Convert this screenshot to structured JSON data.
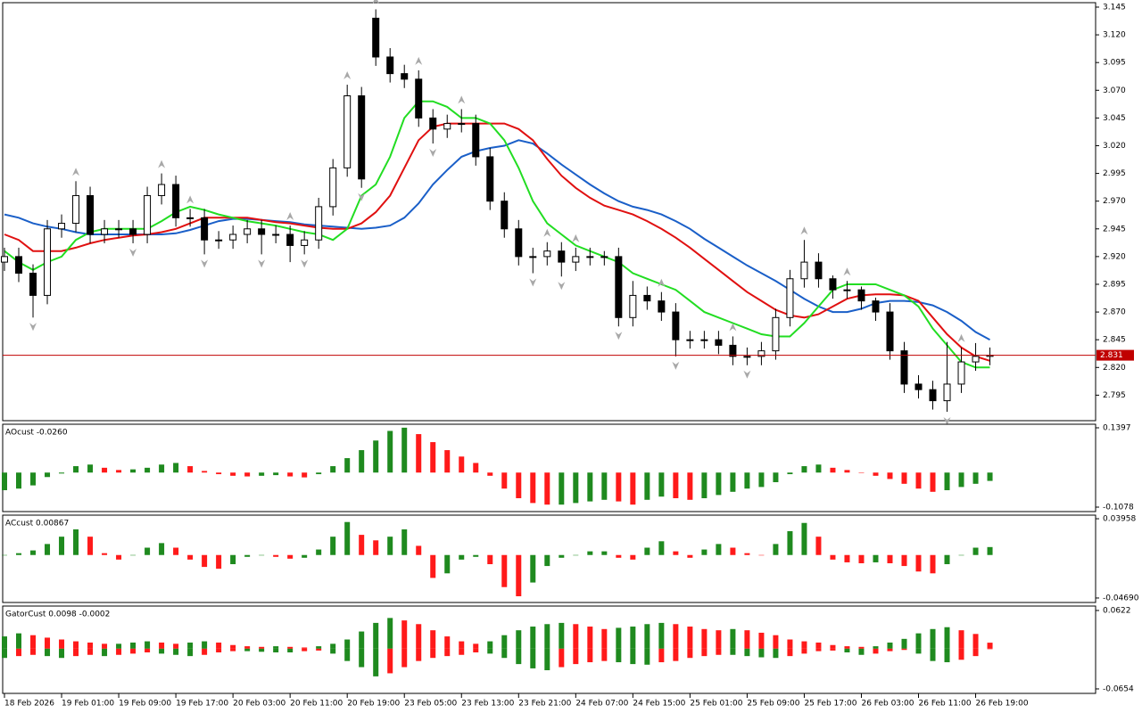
{
  "chart_data": [
    {
      "type": "candlestick",
      "xlim": [
        -0.125,
        76.4
      ],
      "xticks": [
        {
          "value": 0,
          "label": "18 Feb 2026"
        },
        {
          "value": 4,
          "label": "19 Feb 01:00"
        },
        {
          "value": 8,
          "label": "19 Feb 09:00"
        },
        {
          "value": 12,
          "label": "19 Feb 17:00"
        },
        {
          "value": 16,
          "label": "20 Feb 03:00"
        },
        {
          "value": 20,
          "label": "20 Feb 11:00"
        },
        {
          "value": 24,
          "label": "20 Feb 19:00"
        },
        {
          "value": 28,
          "label": "23 Feb 05:00"
        },
        {
          "value": 32,
          "label": "23 Feb 13:00"
        },
        {
          "value": 36,
          "label": "23 Feb 21:00"
        },
        {
          "value": 40,
          "label": "24 Feb 07:00"
        },
        {
          "value": 44,
          "label": "24 Feb 15:00"
        },
        {
          "value": 48,
          "label": "25 Feb 01:00"
        },
        {
          "value": 52,
          "label": "25 Feb 09:00"
        },
        {
          "value": 56,
          "label": "25 Feb 17:00"
        },
        {
          "value": 60,
          "label": "26 Feb 03:00"
        },
        {
          "value": 64,
          "label": "26 Feb 11:00"
        },
        {
          "value": 68,
          "label": "26 Feb 19:00"
        }
      ],
      "ylim": [
        2.772,
        3.149
      ],
      "yticks": [
        3.145,
        {
          "value": 3.12,
          "label": "3.120"
        },
        3.095,
        {
          "value": 3.07,
          "label": "3.070"
        },
        3.045,
        {
          "value": 3.02,
          "label": "3.020"
        },
        2.995,
        {
          "value": 2.97,
          "label": "2.970"
        },
        2.945,
        {
          "value": 2.92,
          "label": "2.920"
        },
        2.895,
        {
          "value": 2.87,
          "label": "2.870"
        },
        2.845,
        {
          "value": 2.82,
          "label": "2.820"
        },
        2.795
      ],
      "up_color": "#ffffff",
      "down_color": "#000000",
      "fractal_color": "#a8a8a8",
      "open": [
        2.915,
        2.92,
        2.905,
        2.885,
        2.945,
        2.95,
        2.975,
        2.94,
        2.945,
        2.945,
        2.94,
        2.975,
        2.985,
        2.955,
        2.955,
        2.935,
        2.935,
        2.94,
        2.945,
        2.94,
        2.94,
        2.93,
        2.935,
        2.965,
        3.0,
        3.065,
        3.135,
        3.1,
        3.085,
        3.08,
        3.045,
        3.035,
        3.04,
        3.04,
        3.01,
        2.97,
        2.945,
        2.92,
        2.92,
        2.925,
        2.915,
        2.92,
        2.92,
        2.92,
        2.865,
        2.885,
        2.88,
        2.87,
        2.845,
        2.845,
        2.845,
        2.84,
        2.83,
        2.83,
        2.835,
        2.865,
        2.9,
        2.915,
        2.9,
        2.89,
        2.89,
        2.88,
        2.87,
        2.835,
        2.805,
        2.8,
        2.79,
        2.805,
        2.825,
        2.83
      ],
      "high": [
        2.928,
        2.928,
        2.913,
        2.953,
        2.958,
        2.988,
        2.983,
        2.953,
        2.953,
        2.953,
        2.983,
        2.995,
        2.993,
        2.963,
        2.963,
        2.943,
        2.948,
        2.953,
        2.953,
        2.948,
        2.948,
        2.943,
        2.973,
        3.008,
        3.075,
        3.073,
        3.143,
        3.108,
        3.093,
        3.088,
        3.053,
        3.048,
        3.053,
        3.048,
        3.018,
        2.978,
        2.953,
        2.928,
        2.933,
        2.933,
        2.928,
        2.928,
        2.925,
        2.928,
        2.898,
        2.893,
        2.888,
        2.878,
        2.853,
        2.853,
        2.853,
        2.848,
        2.838,
        2.843,
        2.873,
        2.908,
        2.935,
        2.923,
        2.903,
        2.898,
        2.893,
        2.883,
        2.878,
        2.843,
        2.813,
        2.808,
        2.843,
        2.838,
        2.842,
        2.838
      ],
      "low": [
        2.907,
        2.897,
        2.865,
        2.877,
        2.937,
        2.942,
        2.932,
        2.932,
        2.937,
        2.932,
        2.932,
        2.967,
        2.947,
        2.947,
        2.922,
        2.927,
        2.927,
        2.932,
        2.922,
        2.932,
        2.915,
        2.922,
        2.927,
        2.957,
        2.992,
        2.982,
        3.092,
        3.077,
        3.072,
        3.037,
        3.022,
        3.027,
        3.032,
        3.002,
        2.962,
        2.937,
        2.912,
        2.905,
        2.912,
        2.902,
        2.907,
        2.912,
        2.912,
        2.857,
        2.857,
        2.872,
        2.862,
        2.83,
        2.837,
        2.837,
        2.832,
        2.822,
        2.822,
        2.822,
        2.827,
        2.857,
        2.892,
        2.892,
        2.882,
        2.882,
        2.872,
        2.862,
        2.827,
        2.797,
        2.792,
        2.782,
        2.78,
        2.797,
        2.817,
        2.822
      ],
      "close": [
        2.92,
        2.905,
        2.885,
        2.945,
        2.95,
        2.975,
        2.94,
        2.945,
        2.945,
        2.94,
        2.975,
        2.985,
        2.955,
        2.955,
        2.935,
        2.935,
        2.94,
        2.945,
        2.94,
        2.94,
        2.93,
        2.935,
        2.965,
        3.0,
        3.065,
        2.99,
        3.1,
        3.085,
        3.08,
        3.045,
        3.035,
        3.04,
        3.04,
        3.01,
        2.97,
        2.945,
        2.92,
        2.92,
        2.925,
        2.915,
        2.92,
        2.92,
        2.92,
        2.865,
        2.885,
        2.88,
        2.87,
        2.845,
        2.845,
        2.845,
        2.84,
        2.83,
        2.83,
        2.835,
        2.865,
        2.9,
        2.915,
        2.9,
        2.89,
        2.89,
        2.88,
        2.87,
        2.835,
        2.805,
        2.8,
        2.79,
        2.805,
        2.825,
        2.83,
        2.831
      ],
      "fractals_up": [
        {
          "x": 5,
          "value": 2.988
        },
        {
          "x": 11,
          "value": 2.995
        },
        {
          "x": 13,
          "value": 2.963
        },
        {
          "x": 20,
          "value": 2.948
        },
        {
          "x": 24,
          "value": 3.075
        },
        {
          "x": 26,
          "value": 3.143
        },
        {
          "x": 29,
          "value": 3.088
        },
        {
          "x": 32,
          "value": 3.053
        },
        {
          "x": 38,
          "value": 2.933
        },
        {
          "x": 40,
          "value": 2.928
        },
        {
          "x": 46,
          "value": 2.888
        },
        {
          "x": 51,
          "value": 2.848
        },
        {
          "x": 56,
          "value": 2.935
        },
        {
          "x": 59,
          "value": 2.898
        },
        {
          "x": 67,
          "value": 2.838
        }
      ],
      "fractals_down": [
        {
          "x": 2,
          "value": 2.865
        },
        {
          "x": 9,
          "value": 2.932
        },
        {
          "x": 14,
          "value": 2.922
        },
        {
          "x": 18,
          "value": 2.922
        },
        {
          "x": 21,
          "value": 2.922
        },
        {
          "x": 25,
          "value": 2.982
        },
        {
          "x": 30,
          "value": 3.022
        },
        {
          "x": 37,
          "value": 2.905
        },
        {
          "x": 39,
          "value": 2.902
        },
        {
          "x": 43,
          "value": 2.857
        },
        {
          "x": 47,
          "value": 2.83
        },
        {
          "x": 52,
          "value": 2.822
        },
        {
          "x": 66,
          "value": 2.78
        }
      ],
      "series": [
        {
          "color": "#1a5fc8",
          "values": [
            2.958,
            2.955,
            2.95,
            2.947,
            2.945,
            2.942,
            2.94,
            2.94,
            2.94,
            2.94,
            2.94,
            2.94,
            2.941,
            2.944,
            2.948,
            2.952,
            2.954,
            2.954,
            2.953,
            2.952,
            2.951,
            2.949,
            2.948,
            2.947,
            2.946,
            2.945,
            2.946,
            2.948,
            2.955,
            2.968,
            2.985,
            2.998,
            3.01,
            3.015,
            3.018,
            3.02,
            3.025,
            3.022,
            3.013,
            3.003,
            2.994,
            2.985,
            2.977,
            2.97,
            2.965,
            2.962,
            2.958,
            2.952,
            2.945,
            2.936,
            2.928,
            2.92,
            2.912,
            2.905,
            2.898,
            2.89,
            2.882,
            2.875,
            2.87,
            2.87,
            2.873,
            2.878,
            2.88,
            2.88,
            2.879,
            2.876,
            2.87,
            2.862,
            2.852,
            2.845
          ]
        },
        {
          "color": "#e01010",
          "values": [
            2.94,
            2.935,
            2.925,
            2.925,
            2.925,
            2.928,
            2.932,
            2.935,
            2.937,
            2.939,
            2.94,
            2.942,
            2.945,
            2.95,
            2.955,
            2.955,
            2.955,
            2.955,
            2.953,
            2.951,
            2.95,
            2.948,
            2.946,
            2.945,
            2.945,
            2.95,
            2.96,
            2.975,
            3.0,
            3.025,
            3.037,
            3.04,
            3.04,
            3.04,
            3.04,
            3.04,
            3.035,
            3.025,
            3.008,
            2.993,
            2.982,
            2.973,
            2.966,
            2.962,
            2.958,
            2.952,
            2.945,
            2.937,
            2.928,
            2.918,
            2.908,
            2.898,
            2.888,
            2.88,
            2.872,
            2.867,
            2.865,
            2.868,
            2.875,
            2.882,
            2.885,
            2.886,
            2.886,
            2.885,
            2.88,
            2.865,
            2.85,
            2.838,
            2.83,
            2.826
          ]
        },
        {
          "color": "#22dd22",
          "values": [
            2.925,
            2.915,
            2.908,
            2.915,
            2.92,
            2.935,
            2.942,
            2.945,
            2.945,
            2.945,
            2.945,
            2.952,
            2.96,
            2.965,
            2.962,
            2.958,
            2.955,
            2.952,
            2.95,
            2.948,
            2.945,
            2.942,
            2.94,
            2.935,
            2.945,
            2.975,
            2.985,
            3.01,
            3.045,
            3.06,
            3.06,
            3.055,
            3.045,
            3.045,
            3.04,
            3.025,
            3.0,
            2.97,
            2.95,
            2.94,
            2.93,
            2.925,
            2.92,
            2.915,
            2.905,
            2.9,
            2.895,
            2.89,
            2.88,
            2.87,
            2.865,
            2.86,
            2.855,
            2.85,
            2.848,
            2.848,
            2.86,
            2.875,
            2.89,
            2.895,
            2.895,
            2.895,
            2.89,
            2.885,
            2.875,
            2.855,
            2.84,
            2.825,
            2.82,
            2.82
          ]
        }
      ],
      "last_price": 2.831,
      "last_price_color": "#c00000"
    },
    {
      "type": "bar",
      "title": "AOcust -0.0260",
      "ylim": [
        -0.1217,
        0.1508
      ],
      "yticks": [
        0.1397,
        -0.1078
      ],
      "up_color": "#1f8a1f",
      "down_color": "#ff1a1a",
      "values": [
        -0.055,
        -0.05,
        -0.04,
        -0.014,
        -0.003,
        0.02,
        0.025,
        0.015,
        0.008,
        0.01,
        0.015,
        0.025,
        0.03,
        0.02,
        0.005,
        -0.005,
        -0.01,
        -0.012,
        -0.01,
        -0.008,
        -0.012,
        -0.015,
        -0.005,
        0.02,
        0.045,
        0.07,
        0.1,
        0.13,
        0.14,
        0.12,
        0.095,
        0.07,
        0.05,
        0.03,
        -0.01,
        -0.05,
        -0.08,
        -0.095,
        -0.1,
        -0.1,
        -0.095,
        -0.09,
        -0.085,
        -0.09,
        -0.1,
        -0.085,
        -0.075,
        -0.08,
        -0.085,
        -0.08,
        -0.07,
        -0.06,
        -0.05,
        -0.045,
        -0.03,
        -0.005,
        0.02,
        0.025,
        0.015,
        0.008,
        0.0,
        -0.01,
        -0.02,
        -0.035,
        -0.05,
        -0.06,
        -0.055,
        -0.045,
        -0.035,
        -0.026
      ]
    },
    {
      "type": "bar",
      "title": "ACcust 0.00867",
      "ylim": [
        -0.0518,
        0.0435
      ],
      "yticks": [
        0.03958,
        {
          "value": -0.0469,
          "label": "-0.04690"
        }
      ],
      "up_color": "#1f8a1f",
      "down_color": "#ff1a1a",
      "values": [
        0.0,
        0.002,
        0.005,
        0.012,
        0.02,
        0.028,
        0.02,
        0.002,
        -0.005,
        0.0,
        0.008,
        0.013,
        0.008,
        -0.005,
        -0.013,
        -0.015,
        -0.01,
        -0.002,
        0.0,
        -0.002,
        -0.004,
        -0.003,
        0.006,
        0.02,
        0.036,
        0.022,
        0.016,
        0.02,
        0.028,
        0.01,
        -0.025,
        -0.02,
        -0.005,
        -0.002,
        -0.01,
        -0.035,
        -0.045,
        -0.03,
        -0.012,
        -0.003,
        0.0,
        0.004,
        0.004,
        -0.003,
        -0.005,
        0.008,
        0.015,
        0.004,
        -0.003,
        0.006,
        0.012,
        0.008,
        0.002,
        0.0,
        0.012,
        0.026,
        0.035,
        0.02,
        -0.005,
        -0.008,
        -0.009,
        -0.008,
        -0.009,
        -0.012,
        -0.018,
        -0.02,
        -0.01,
        0.0,
        0.008,
        0.00867
      ]
    },
    {
      "type": "gator",
      "title": "GatorCust 0.0098 -0.0002",
      "ylim": [
        -0.0727,
        0.0694
      ],
      "yticks": [
        0.0622,
        -0.0654
      ],
      "up_color": "#1f8a1f",
      "down_color": "#ff1a1a",
      "upper": [
        0.02,
        0.025,
        0.022,
        0.018,
        0.015,
        0.012,
        0.01,
        0.008,
        0.008,
        0.01,
        0.012,
        0.01,
        0.008,
        0.01,
        0.012,
        0.01,
        0.006,
        0.004,
        0.003,
        0.004,
        0.003,
        0.002,
        0.004,
        0.008,
        0.015,
        0.028,
        0.042,
        0.05,
        0.046,
        0.04,
        0.03,
        0.02,
        0.012,
        0.008,
        0.012,
        0.022,
        0.03,
        0.036,
        0.04,
        0.042,
        0.04,
        0.036,
        0.032,
        0.034,
        0.036,
        0.04,
        0.042,
        0.04,
        0.036,
        0.032,
        0.03,
        0.032,
        0.03,
        0.026,
        0.022,
        0.015,
        0.012,
        0.01,
        0.006,
        0.004,
        0.003,
        0.004,
        0.01,
        0.016,
        0.025,
        0.032,
        0.035,
        0.03,
        0.024,
        0.0098
      ],
      "lower": [
        -0.015,
        -0.012,
        -0.01,
        -0.012,
        -0.015,
        -0.012,
        -0.01,
        -0.012,
        -0.01,
        -0.008,
        -0.006,
        -0.008,
        -0.01,
        -0.012,
        -0.01,
        -0.006,
        -0.004,
        -0.004,
        -0.005,
        -0.006,
        -0.006,
        -0.004,
        -0.003,
        -0.008,
        -0.02,
        -0.03,
        -0.045,
        -0.04,
        -0.03,
        -0.02,
        -0.015,
        -0.012,
        -0.01,
        -0.006,
        -0.008,
        -0.015,
        -0.025,
        -0.032,
        -0.035,
        -0.03,
        -0.025,
        -0.022,
        -0.02,
        -0.022,
        -0.025,
        -0.026,
        -0.022,
        -0.02,
        -0.015,
        -0.012,
        -0.01,
        -0.01,
        -0.012,
        -0.014,
        -0.015,
        -0.012,
        -0.008,
        -0.004,
        -0.003,
        -0.006,
        -0.01,
        -0.008,
        -0.004,
        -0.002,
        -0.008,
        -0.02,
        -0.022,
        -0.018,
        -0.012,
        -0.0002
      ]
    }
  ]
}
